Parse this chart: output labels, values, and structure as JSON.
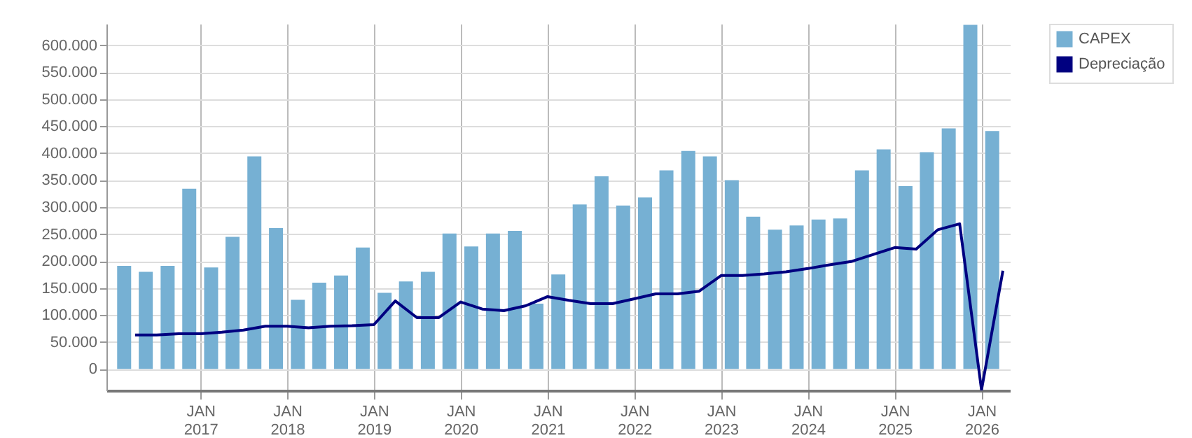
{
  "chart_data": {
    "type": "line",
    "xlim": [
      "2016-01-01",
      "2026-04-01"
    ],
    "xticks": [
      {
        "value": "2017-01-01",
        "label": "JAN\n2017"
      },
      {
        "value": "2018-01-01",
        "label": "JAN\n2018"
      },
      {
        "value": "2019-01-01",
        "label": "JAN\n2019"
      },
      {
        "value": "2020-01-01",
        "label": "JAN\n2020"
      },
      {
        "value": "2021-01-01",
        "label": "JAN\n2021"
      },
      {
        "value": "2022-01-01",
        "label": "JAN\n2022"
      },
      {
        "value": "2023-01-01",
        "label": "JAN\n2023"
      },
      {
        "value": "2024-01-01",
        "label": "JAN\n2024"
      },
      {
        "value": "2025-01-01",
        "label": "JAN\n2025"
      },
      {
        "value": "2026-01-01",
        "label": "JAN\n2026"
      }
    ],
    "ylim": [
      -40000,
      640000
    ],
    "yticks": [
      {
        "value": 0,
        "label": "0"
      },
      {
        "value": 50000,
        "label": "50.000"
      },
      {
        "value": 100000,
        "label": "100.000"
      },
      {
        "value": 150000,
        "label": "150.000"
      },
      {
        "value": 200000,
        "label": "200.000"
      },
      {
        "value": 250000,
        "label": "250.000"
      },
      {
        "value": 300000,
        "label": "300.000"
      },
      {
        "value": 350000,
        "label": "350.000"
      },
      {
        "value": 400000,
        "label": "400.000"
      },
      {
        "value": 450000,
        "label": "450.000"
      },
      {
        "value": 500000,
        "label": "500.000"
      },
      {
        "value": 550000,
        "label": "550.000"
      },
      {
        "value": 600000,
        "label": "600.000"
      }
    ],
    "grid": true,
    "legend": "top right",
    "series": [
      {
        "name": "CAPEX",
        "type": "bar",
        "color": "#76b0d3",
        "x": [
          "2016-02-15",
          "2016-05-16",
          "2016-08-16",
          "2016-11-15",
          "2017-02-15",
          "2017-05-16",
          "2017-08-16",
          "2017-11-15",
          "2018-02-15",
          "2018-05-16",
          "2018-08-16",
          "2018-11-15",
          "2019-02-15",
          "2019-05-16",
          "2019-08-16",
          "2019-11-15",
          "2020-02-15",
          "2020-05-16",
          "2020-08-16",
          "2020-11-15",
          "2021-02-15",
          "2021-05-16",
          "2021-08-16",
          "2021-11-15",
          "2022-02-15",
          "2022-05-16",
          "2022-08-16",
          "2022-11-15",
          "2023-02-15",
          "2023-05-16",
          "2023-08-16",
          "2023-11-15",
          "2024-02-15",
          "2024-05-16",
          "2024-08-16",
          "2024-11-15",
          "2025-02-15",
          "2025-05-16",
          "2025-08-16",
          "2025-11-15",
          "2026-02-15"
        ],
        "values": [
          191000,
          180000,
          191000,
          334000,
          188000,
          245000,
          394000,
          261000,
          128000,
          160000,
          173000,
          225000,
          141000,
          162000,
          180000,
          251000,
          227000,
          251000,
          256000,
          121000,
          175000,
          305000,
          357000,
          303000,
          318000,
          368000,
          404000,
          394000,
          350000,
          282000,
          258000,
          266000,
          277000,
          279000,
          368000,
          407000,
          339000,
          402000,
          446000,
          638000,
          441000
        ]
      },
      {
        "name": "Depreciação",
        "color": "#000080",
        "x": [
          "2016-04-01",
          "2016-07-01",
          "2016-10-01",
          "2017-01-01",
          "2017-04-01",
          "2017-07-01",
          "2017-10-01",
          "2018-01-01",
          "2018-04-01",
          "2018-07-01",
          "2018-10-01",
          "2019-01-01",
          "2019-04-01",
          "2019-07-01",
          "2019-10-01",
          "2020-01-01",
          "2020-04-01",
          "2020-07-01",
          "2020-10-01",
          "2021-01-01",
          "2021-04-01",
          "2021-07-01",
          "2021-10-01",
          "2022-01-01",
          "2022-04-01",
          "2022-07-01",
          "2022-10-01",
          "2023-01-01",
          "2023-04-01",
          "2023-07-01",
          "2023-10-01",
          "2024-01-01",
          "2024-04-01",
          "2024-07-01",
          "2024-10-01",
          "2025-01-01",
          "2025-04-01",
          "2025-07-01",
          "2025-10-01",
          "2026-01-01",
          "2026-04-01"
        ],
        "values": [
          63000,
          63000,
          65000,
          65000,
          68000,
          72000,
          79000,
          79000,
          76000,
          79000,
          80000,
          82000,
          126000,
          95000,
          95000,
          124000,
          111000,
          108000,
          117000,
          134000,
          127000,
          121000,
          121000,
          130000,
          139000,
          139000,
          144000,
          173000,
          173000,
          176000,
          180000,
          186000,
          193000,
          199000,
          212000,
          225000,
          222000,
          258000,
          269000,
          -39000,
          182000
        ]
      }
    ]
  }
}
